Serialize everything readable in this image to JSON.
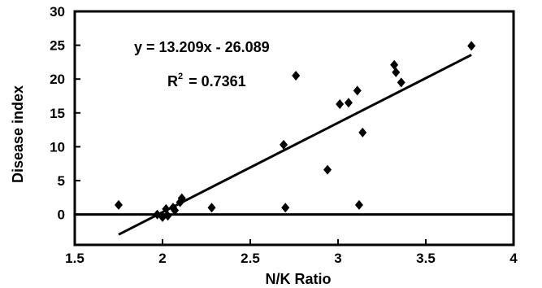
{
  "chart_data": {
    "type": "scatter",
    "title": "",
    "xlabel": "N/K Ratio",
    "ylabel": "Disease index",
    "xlim": [
      1.5,
      4
    ],
    "ylim": [
      -4.5,
      30
    ],
    "xticks": [
      "1.5",
      "2",
      "2.5",
      "3",
      "3.5",
      "4"
    ],
    "yticks": [
      "0",
      "5",
      "10",
      "15",
      "20",
      "25",
      "30"
    ],
    "grid": false,
    "legend": "none",
    "marker": "diamond",
    "color": "#000000",
    "points": [
      {
        "x": 1.75,
        "y": 1.4
      },
      {
        "x": 1.97,
        "y": 0.0
      },
      {
        "x": 2.0,
        "y": -0.4
      },
      {
        "x": 2.02,
        "y": 0.8
      },
      {
        "x": 2.03,
        "y": -0.2
      },
      {
        "x": 2.06,
        "y": 1.0
      },
      {
        "x": 2.07,
        "y": 0.6
      },
      {
        "x": 2.1,
        "y": 1.8
      },
      {
        "x": 2.11,
        "y": 2.4
      },
      {
        "x": 2.28,
        "y": 1.0
      },
      {
        "x": 2.69,
        "y": 10.3
      },
      {
        "x": 2.7,
        "y": 1.0
      },
      {
        "x": 2.76,
        "y": 20.5
      },
      {
        "x": 2.94,
        "y": 6.6
      },
      {
        "x": 3.01,
        "y": 16.3
      },
      {
        "x": 3.06,
        "y": 16.5
      },
      {
        "x": 3.11,
        "y": 18.3
      },
      {
        "x": 3.12,
        "y": 1.4
      },
      {
        "x": 3.14,
        "y": 12.1
      },
      {
        "x": 3.32,
        "y": 22.1
      },
      {
        "x": 3.33,
        "y": 21.0
      },
      {
        "x": 3.36,
        "y": 19.5
      },
      {
        "x": 3.76,
        "y": 24.9
      }
    ],
    "trendline": {
      "slope": 13.209,
      "intercept": -26.089,
      "x_range": [
        1.75,
        3.76
      ]
    },
    "annotations": {
      "equation": "y = 13.209x - 26.089",
      "r2_label": "R",
      "r2_sup": "2",
      "r2_value": "= 0.7361"
    }
  }
}
